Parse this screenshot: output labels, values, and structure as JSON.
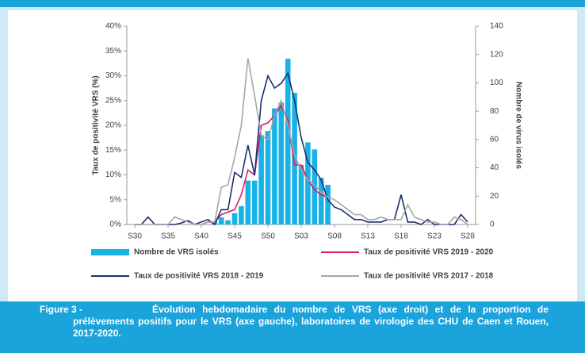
{
  "chart_data": {
    "type": "combo",
    "categories": [
      "S30",
      null,
      null,
      null,
      null,
      "S35",
      null,
      null,
      null,
      null,
      "S40",
      null,
      null,
      null,
      null,
      "S45",
      null,
      null,
      null,
      null,
      "S50",
      null,
      null,
      null,
      null,
      "S03",
      null,
      null,
      null,
      null,
      "S08",
      null,
      null,
      null,
      null,
      "S13",
      null,
      null,
      null,
      null,
      "S18",
      null,
      null,
      null,
      null,
      "S23",
      null,
      null,
      null,
      null,
      "S28"
    ],
    "ylabel": "Taux de positivité VRS (%)",
    "y2label": "Nombre de virus isolés",
    "ylim": [
      0,
      40
    ],
    "yticks": [
      {
        "value": 0,
        "label": "0%"
      },
      {
        "value": 5,
        "label": "5%"
      },
      {
        "value": 10,
        "label": "10%"
      },
      {
        "value": 15,
        "label": "15%"
      },
      {
        "value": 20,
        "label": "20%"
      },
      {
        "value": 25,
        "label": "25%"
      },
      {
        "value": 30,
        "label": "30%"
      },
      {
        "value": 35,
        "label": "35%"
      },
      {
        "value": 40,
        "label": "40%"
      }
    ],
    "y2lim": [
      0,
      140
    ],
    "y2ticks": [
      0,
      20,
      40,
      60,
      80,
      100,
      120,
      140
    ],
    "series": [
      {
        "name": "Nombre de VRS isolés",
        "type": "bar",
        "axis": "y2",
        "color": "#17b2e6",
        "values": [
          0,
          0,
          0,
          0,
          0,
          0,
          0,
          0,
          0,
          0,
          0,
          0,
          2,
          5,
          3,
          8,
          13,
          31,
          31,
          63,
          66,
          82,
          86,
          117,
          93,
          42,
          58,
          53,
          33,
          28,
          0,
          0,
          0,
          0,
          0,
          0,
          0,
          0,
          0,
          0,
          0,
          0,
          0,
          0,
          0,
          0,
          0,
          0,
          0,
          0,
          0
        ]
      },
      {
        "name": "Taux de positivité VRS 2019 - 2020",
        "type": "line",
        "color": "#e0176b",
        "values": [
          null,
          null,
          null,
          null,
          null,
          null,
          null,
          null,
          null,
          null,
          0,
          0.5,
          0.5,
          2,
          2.5,
          3,
          6,
          11,
          10,
          20,
          20.5,
          22,
          24,
          21,
          12,
          12,
          9,
          7,
          6,
          5.5,
          null,
          null,
          null,
          null,
          null,
          null,
          null,
          null,
          null,
          null,
          null,
          null,
          null,
          null,
          null,
          null,
          null,
          null,
          null,
          null,
          null
        ]
      },
      {
        "name": "Taux de positivité VRS 2018 - 2019",
        "type": "line",
        "color": "#1b2f6e",
        "values": [
          0,
          0,
          1.5,
          0,
          0,
          0,
          0,
          0.3,
          0.8,
          0,
          0.5,
          1,
          0,
          3,
          3,
          10.5,
          9.5,
          16,
          10,
          25,
          30,
          27.5,
          28.5,
          30.5,
          25,
          17.5,
          12.5,
          11,
          9,
          5,
          3.5,
          3,
          2,
          1,
          1,
          0.5,
          0.5,
          0.5,
          1,
          1,
          6,
          0.5,
          0.5,
          0,
          1,
          0,
          0,
          0,
          0,
          2,
          0.5
        ]
      },
      {
        "name": "Taux de positivité VRS 2017 - 2018",
        "type": "line",
        "color": "#a6a6a6",
        "values": [
          0,
          0,
          0,
          0,
          0,
          0,
          1.5,
          1,
          0.5,
          0,
          0,
          0.5,
          0.5,
          7.5,
          8,
          13.5,
          20,
          33.5,
          26,
          18,
          17,
          22,
          25,
          20,
          14,
          11,
          9,
          8,
          6.5,
          5.5,
          5,
          4,
          3,
          2,
          2,
          1,
          1,
          1.5,
          1,
          1,
          1,
          4,
          1.5,
          1,
          0.5,
          0.5,
          0,
          0,
          1.5,
          1,
          0
        ]
      }
    ]
  },
  "caption": {
    "label": "Figure 3 -",
    "text": "Évolution hebdomadaire du nombre de VRS (axe droit) et de la proportion de prélèvements positifs pour le VRS (axe gauche), laboratoires de virologie des CHU de Caen et Rouen, 2017-2020."
  }
}
